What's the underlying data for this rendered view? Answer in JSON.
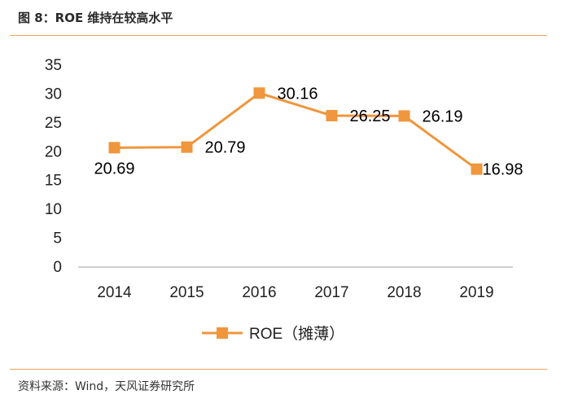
{
  "figure": {
    "title": "图 8：ROE 维持在较高水平",
    "source": "资料来源：Wind，天风证券研究所"
  },
  "colors": {
    "series": "#f0963c",
    "axis": "#bfbfbf",
    "text": "#000000",
    "rule": "#f0a45a"
  },
  "chart_data": {
    "type": "line",
    "categories": [
      "2014",
      "2015",
      "2016",
      "2017",
      "2018",
      "2019"
    ],
    "series": [
      {
        "name": "ROE（摊薄）",
        "values": [
          20.69,
          20.79,
          30.16,
          26.25,
          26.19,
          16.98
        ],
        "labels": [
          "20.69",
          "20.79",
          "30.16",
          "26.25",
          "26.19",
          "16.98"
        ]
      }
    ],
    "ylim": [
      0,
      35
    ],
    "yticks": [
      "0",
      "5",
      "10",
      "15",
      "20",
      "25",
      "30",
      "35"
    ],
    "grid": false,
    "legend": "bottom-center",
    "marker": "square"
  }
}
